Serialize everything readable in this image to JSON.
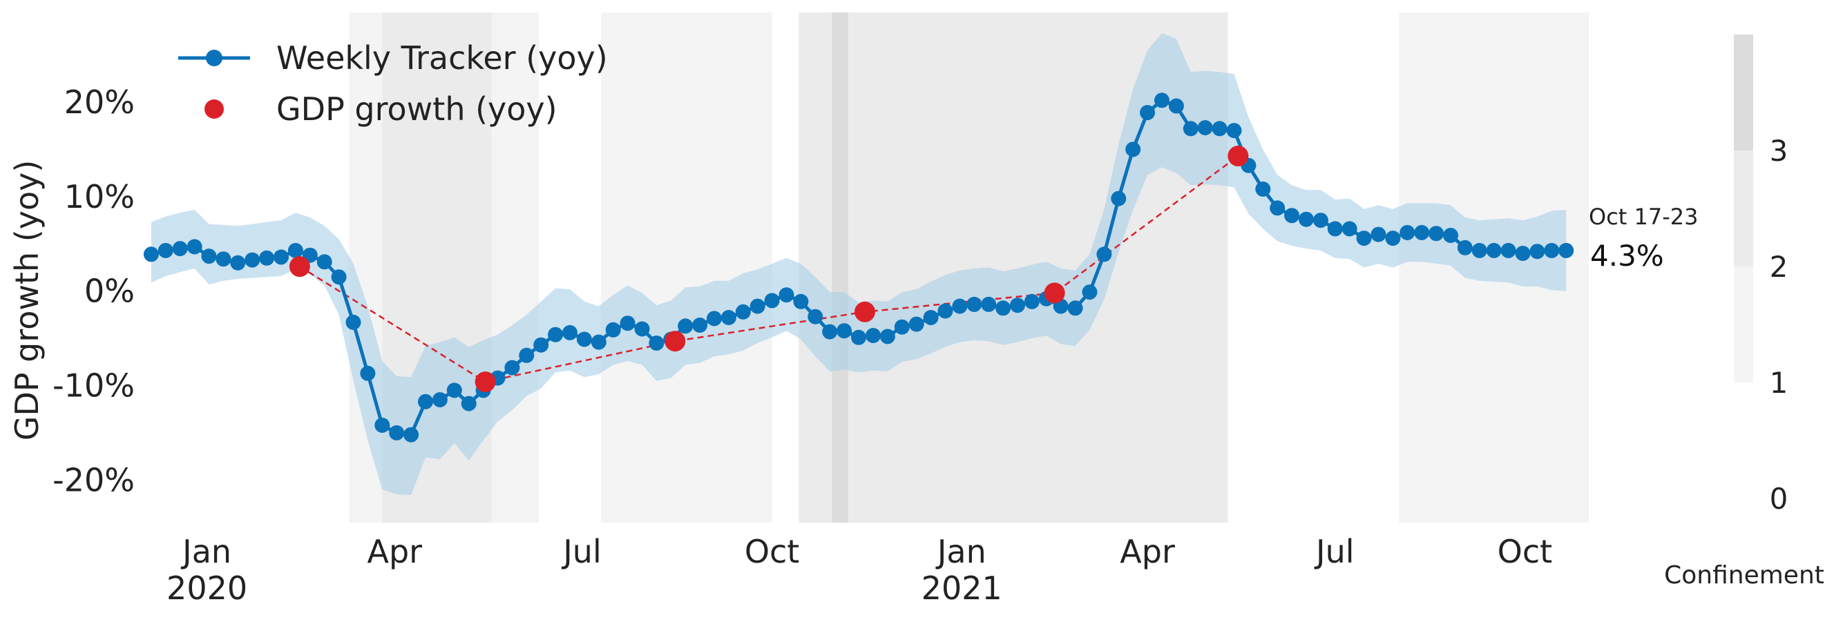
{
  "chart_data": {
    "type": "line",
    "ylabel": "GDP growth (yoy)",
    "ylim": [
      -24.5,
      29.5
    ],
    "y_ticks": [
      -20,
      -10,
      0,
      10,
      20
    ],
    "y_tick_labels": [
      "-20%",
      "-10%",
      "0%",
      "10%",
      "20%"
    ],
    "x_ticks": [
      {
        "date": "2020-01-01",
        "label": "Jan",
        "sublabel": "2020"
      },
      {
        "date": "2020-04-01",
        "label": "Apr",
        "sublabel": ""
      },
      {
        "date": "2020-07-01",
        "label": "Jul",
        "sublabel": ""
      },
      {
        "date": "2020-10-01",
        "label": "Oct",
        "sublabel": ""
      },
      {
        "date": "2021-01-01",
        "label": "Jan",
        "sublabel": "2021"
      },
      {
        "date": "2021-04-01",
        "label": "Apr",
        "sublabel": ""
      },
      {
        "date": "2021-07-01",
        "label": "Jul",
        "sublabel": ""
      },
      {
        "date": "2021-10-01",
        "label": "Oct",
        "sublabel": ""
      }
    ],
    "xlim": [
      "2019-12-01",
      "2021-11-01"
    ],
    "legend": {
      "position": "top-left",
      "tracker_label": "Weekly Tracker (yoy)",
      "gdp_label": "GDP growth (yoy)"
    },
    "annotation": {
      "period": "Oct 17-23",
      "value_label": "4.3%"
    },
    "grid": false,
    "colors": {
      "tracker": "#0a72b9",
      "band": "#a9cfe8",
      "gdp": "#db2128",
      "confine_1": "#f4f4f4",
      "confine_2": "#ebebeb",
      "confine_3": "#dcdcdc"
    },
    "confinement_periods": [
      {
        "start": "2020-03-10",
        "end": "2020-03-26",
        "level": 1
      },
      {
        "start": "2020-03-26",
        "end": "2020-05-18",
        "level": 2
      },
      {
        "start": "2020-05-18",
        "end": "2020-06-10",
        "level": 1
      },
      {
        "start": "2020-07-10",
        "end": "2020-10-01",
        "level": 1
      },
      {
        "start": "2020-10-14",
        "end": "2020-10-30",
        "level": 2
      },
      {
        "start": "2020-10-30",
        "end": "2020-11-07",
        "level": 3
      },
      {
        "start": "2020-11-07",
        "end": "2021-05-10",
        "level": 2
      },
      {
        "start": "2021-08-01",
        "end": "2021-11-01",
        "level": 1
      }
    ],
    "colorbar": {
      "label": "Confinement",
      "tick_labels": [
        "0",
        "1",
        "2",
        "3"
      ]
    },
    "tracker_series": {
      "name": "Weekly Tracker (yoy)",
      "start_date": "2019-12-05",
      "step_days": 7,
      "values": [
        3.9,
        4.3,
        4.5,
        4.7,
        3.7,
        3.4,
        3.0,
        3.3,
        3.5,
        3.6,
        4.3,
        3.8,
        3.1,
        1.5,
        -3.3,
        -8.7,
        -14.2,
        -15.0,
        -15.2,
        -11.7,
        -11.5,
        -10.5,
        -11.9,
        -10.5,
        -9.2,
        -8.1,
        -6.8,
        -5.7,
        -4.6,
        -4.4,
        -5.1,
        -5.4,
        -4.1,
        -3.4,
        -4.0,
        -5.5,
        -5.1,
        -3.7,
        -3.6,
        -2.9,
        -2.8,
        -2.2,
        -1.6,
        -1.0,
        -0.4,
        -1.1,
        -2.7,
        -4.3,
        -4.2,
        -4.9,
        -4.7,
        -4.8,
        -3.8,
        -3.5,
        -2.8,
        -2.1,
        -1.6,
        -1.4,
        -1.4,
        -1.8,
        -1.5,
        -1.1,
        -0.8,
        -1.6,
        -1.8,
        -0.1,
        3.9,
        9.8,
        15.0,
        18.9,
        20.2,
        19.6,
        17.2,
        17.3,
        17.2,
        17.0,
        13.3,
        10.8,
        8.8,
        8.0,
        7.6,
        7.5,
        6.6,
        6.6,
        5.6,
        6.0,
        5.6,
        6.2,
        6.2,
        6.1,
        5.9,
        4.6,
        4.3,
        4.3,
        4.3,
        4.0,
        4.2,
        4.3,
        4.3
      ],
      "band_lower": [
        0.9,
        1.6,
        2.0,
        2.4,
        0.7,
        1.1,
        1.3,
        1.4,
        1.5,
        1.6,
        2.3,
        1.8,
        0.6,
        -2.5,
        -9.5,
        -15.8,
        -21.0,
        -21.5,
        -21.6,
        -17.6,
        -17.8,
        -16.1,
        -17.9,
        -15.8,
        -13.8,
        -12.6,
        -11.1,
        -10.3,
        -8.6,
        -8.4,
        -9.1,
        -8.8,
        -7.8,
        -7.4,
        -7.8,
        -9.5,
        -9.2,
        -7.8,
        -7.6,
        -6.9,
        -6.7,
        -6.3,
        -5.5,
        -4.9,
        -4.2,
        -5.1,
        -6.9,
        -8.5,
        -8.3,
        -8.6,
        -8.4,
        -8.5,
        -7.5,
        -7.2,
        -6.6,
        -5.9,
        -5.4,
        -5.2,
        -5.3,
        -5.7,
        -5.4,
        -5.0,
        -4.7,
        -5.6,
        -5.8,
        -4.1,
        -0.9,
        4.1,
        8.6,
        12.3,
        13.1,
        12.5,
        11.2,
        11.3,
        11.2,
        11.0,
        8.2,
        6.6,
        5.3,
        4.8,
        4.5,
        4.3,
        3.5,
        3.4,
        2.5,
        2.9,
        2.5,
        3.1,
        3.1,
        2.9,
        2.7,
        1.4,
        1.1,
        1.0,
        0.9,
        0.5,
        0.5,
        0.1,
        0.0
      ],
      "band_upper": [
        7.3,
        7.9,
        8.3,
        8.6,
        7.1,
        7.0,
        6.9,
        7.1,
        7.3,
        7.5,
        8.3,
        7.8,
        6.9,
        5.5,
        2.9,
        -1.6,
        -7.4,
        -9.0,
        -9.1,
        -5.8,
        -5.4,
        -4.9,
        -5.9,
        -5.2,
        -4.6,
        -3.6,
        -2.5,
        -1.1,
        0.3,
        0.2,
        -1.1,
        -1.6,
        -0.4,
        0.6,
        -0.2,
        -1.5,
        -1.0,
        0.4,
        0.5,
        1.1,
        1.1,
        1.9,
        2.3,
        2.9,
        3.5,
        2.9,
        1.5,
        -0.1,
        -0.1,
        -1.2,
        -1.0,
        -1.1,
        -0.1,
        0.2,
        1.0,
        1.7,
        2.2,
        2.4,
        2.5,
        2.1,
        2.4,
        2.8,
        3.1,
        2.4,
        2.2,
        3.9,
        8.7,
        15.5,
        21.4,
        25.5,
        27.3,
        26.7,
        23.2,
        23.3,
        23.2,
        23.0,
        18.4,
        15.0,
        12.3,
        11.2,
        10.7,
        10.7,
        9.7,
        9.8,
        8.7,
        9.1,
        8.7,
        9.3,
        9.3,
        9.3,
        9.1,
        7.8,
        7.5,
        7.6,
        7.7,
        7.5,
        7.9,
        8.5,
        8.6
      ]
    },
    "gdp_series": {
      "name": "GDP growth (yoy)",
      "points": [
        {
          "date": "2020-02-15",
          "value": 2.6
        },
        {
          "date": "2020-05-15",
          "value": -9.6
        },
        {
          "date": "2020-08-15",
          "value": -5.3
        },
        {
          "date": "2020-11-15",
          "value": -2.2
        },
        {
          "date": "2021-02-15",
          "value": -0.2
        },
        {
          "date": "2021-05-15",
          "value": 14.3
        }
      ]
    }
  }
}
